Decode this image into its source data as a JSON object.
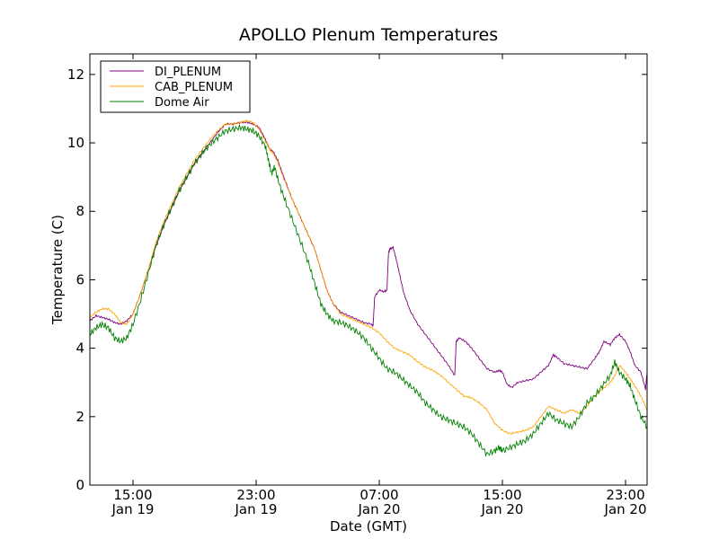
{
  "chart_data": {
    "type": "line",
    "title": "APOLLO Plenum Temperatures",
    "xlabel": "Date (GMT)",
    "ylabel": "Temperature (C)",
    "x_unit": "hours since Jan 19 00:00 GMT",
    "xlim": [
      12.2,
      48.4
    ],
    "ylim": [
      0,
      12.6
    ],
    "grid": false,
    "legend_position": "top-left",
    "x_ticks": [
      {
        "value": 15,
        "time": "15:00",
        "date": "Jan 19"
      },
      {
        "value": 23,
        "time": "23:00",
        "date": "Jan 19"
      },
      {
        "value": 31,
        "time": "07:00",
        "date": "Jan 20"
      },
      {
        "value": 39,
        "time": "15:00",
        "date": "Jan 20"
      },
      {
        "value": 47,
        "time": "23:00",
        "date": "Jan 20"
      }
    ],
    "y_ticks": [
      0,
      2,
      4,
      6,
      8,
      10,
      12
    ],
    "series": [
      {
        "name": "DI_PLENUM",
        "color": "#800080",
        "x": [
          12.2,
          12.6,
          13.0,
          13.4,
          13.8,
          14.2,
          14.6,
          15.0,
          15.5,
          16.0,
          16.5,
          17.0,
          17.5,
          18.0,
          18.5,
          19.0,
          19.5,
          20.0,
          20.5,
          21.0,
          21.5,
          22.0,
          22.4,
          22.8,
          23.2,
          23.6,
          23.9,
          24.1,
          24.4,
          24.8,
          25.3,
          25.8,
          26.3,
          26.8,
          27.2,
          27.6,
          28.0,
          28.5,
          29.0,
          29.5,
          30.0,
          30.5,
          30.6,
          30.7,
          31.0,
          31.3,
          31.5,
          31.6,
          31.7,
          31.9,
          32.1,
          32.3,
          32.6,
          33.0,
          33.5,
          34.0,
          34.5,
          35.0,
          35.5,
          35.9,
          36.0,
          36.2,
          36.6,
          37.0,
          37.5,
          38.0,
          38.5,
          38.8,
          39.0,
          39.3,
          39.6,
          40.0,
          40.5,
          41.0,
          41.5,
          42.0,
          42.3,
          42.5,
          43.0,
          43.5,
          44.0,
          44.5,
          45.0,
          45.3,
          45.6,
          46.0,
          46.3,
          46.6,
          47.0,
          47.3,
          47.6,
          48.0,
          48.3,
          48.4
        ],
        "y": [
          4.8,
          4.95,
          4.9,
          4.85,
          4.75,
          4.7,
          4.8,
          5.0,
          5.6,
          6.3,
          7.0,
          7.6,
          8.1,
          8.6,
          9.0,
          9.4,
          9.7,
          10.0,
          10.3,
          10.55,
          10.55,
          10.6,
          10.6,
          10.55,
          10.45,
          10.1,
          9.8,
          9.75,
          9.5,
          9.0,
          8.4,
          7.9,
          7.4,
          6.9,
          6.3,
          5.7,
          5.3,
          5.05,
          4.95,
          4.85,
          4.75,
          4.7,
          4.65,
          5.5,
          5.7,
          5.65,
          5.7,
          6.8,
          6.9,
          6.95,
          6.6,
          6.2,
          5.6,
          5.1,
          4.7,
          4.4,
          4.1,
          3.8,
          3.5,
          3.2,
          4.2,
          4.3,
          4.2,
          4.0,
          3.7,
          3.4,
          3.3,
          3.35,
          3.3,
          2.95,
          2.85,
          3.0,
          3.05,
          3.1,
          3.3,
          3.5,
          3.8,
          3.75,
          3.55,
          3.5,
          3.45,
          3.4,
          3.7,
          3.9,
          4.2,
          4.1,
          4.3,
          4.4,
          4.2,
          3.9,
          3.5,
          3.3,
          2.8,
          3.3
        ]
      },
      {
        "name": "CAB_PLENUM",
        "color": "#ffa500",
        "x": [
          12.2,
          12.6,
          13.0,
          13.4,
          13.8,
          14.2,
          14.6,
          15.0,
          15.5,
          16.0,
          16.5,
          17.0,
          17.5,
          18.0,
          18.5,
          19.0,
          19.5,
          20.0,
          20.5,
          21.0,
          21.5,
          22.0,
          22.4,
          22.8,
          23.2,
          23.6,
          23.9,
          24.1,
          24.4,
          24.8,
          25.3,
          25.8,
          26.3,
          26.8,
          27.2,
          27.6,
          28.0,
          28.5,
          29.0,
          29.5,
          30.0,
          30.5,
          31.0,
          31.5,
          32.0,
          32.5,
          33.0,
          33.5,
          34.0,
          34.5,
          35.0,
          35.5,
          36.0,
          36.5,
          37.0,
          37.5,
          38.0,
          38.5,
          39.0,
          39.5,
          40.0,
          40.5,
          41.0,
          41.5,
          42.0,
          42.5,
          43.0,
          43.5,
          44.0,
          44.5,
          45.0,
          45.5,
          46.0,
          46.3,
          46.6,
          47.0,
          47.3,
          47.6,
          48.0,
          48.4
        ],
        "y": [
          4.9,
          5.05,
          5.15,
          5.15,
          5.0,
          4.75,
          4.7,
          5.0,
          5.6,
          6.3,
          7.1,
          7.7,
          8.2,
          8.7,
          9.1,
          9.5,
          9.8,
          10.1,
          10.35,
          10.55,
          10.55,
          10.6,
          10.65,
          10.6,
          10.4,
          10.05,
          9.8,
          9.7,
          9.45,
          8.95,
          8.4,
          7.9,
          7.4,
          6.9,
          6.3,
          5.7,
          5.3,
          5.0,
          4.9,
          4.8,
          4.7,
          4.6,
          4.45,
          4.2,
          4.0,
          3.9,
          3.8,
          3.6,
          3.45,
          3.35,
          3.2,
          3.0,
          2.8,
          2.6,
          2.55,
          2.4,
          2.2,
          1.8,
          1.6,
          1.5,
          1.55,
          1.6,
          1.7,
          2.0,
          2.3,
          2.2,
          2.1,
          2.2,
          2.1,
          2.3,
          2.6,
          2.8,
          3.0,
          3.2,
          3.5,
          3.3,
          3.1,
          2.9,
          2.6,
          2.2
        ]
      },
      {
        "name": "Dome Air",
        "color": "#008000",
        "x": [
          12.2,
          12.6,
          13.0,
          13.4,
          13.8,
          14.2,
          14.6,
          15.0,
          15.5,
          16.0,
          16.5,
          17.0,
          17.5,
          18.0,
          18.5,
          19.0,
          19.5,
          20.0,
          20.5,
          21.0,
          21.5,
          22.0,
          22.4,
          22.8,
          23.2,
          23.6,
          23.8,
          24.0,
          24.2,
          24.5,
          24.9,
          25.4,
          25.9,
          26.4,
          26.8,
          27.2,
          27.6,
          28.0,
          28.5,
          29.0,
          29.5,
          30.0,
          30.5,
          31.0,
          31.5,
          32.0,
          32.5,
          33.0,
          33.5,
          34.0,
          34.5,
          35.0,
          35.5,
          36.0,
          36.5,
          37.0,
          37.5,
          38.0,
          38.5,
          38.8,
          39.0,
          39.5,
          40.0,
          40.5,
          41.0,
          41.5,
          42.0,
          42.5,
          43.0,
          43.5,
          44.0,
          44.5,
          45.0,
          45.5,
          46.0,
          46.3,
          46.6,
          47.0,
          47.3,
          47.6,
          48.0,
          48.4
        ],
        "y": [
          4.4,
          4.6,
          4.7,
          4.6,
          4.3,
          4.2,
          4.3,
          4.7,
          5.4,
          6.2,
          7.0,
          7.6,
          8.1,
          8.6,
          9.0,
          9.4,
          9.7,
          9.95,
          10.15,
          10.35,
          10.4,
          10.45,
          10.4,
          10.35,
          10.2,
          9.9,
          9.5,
          9.1,
          9.3,
          8.8,
          8.3,
          7.7,
          7.1,
          6.5,
          5.9,
          5.3,
          5.0,
          4.8,
          4.75,
          4.65,
          4.5,
          4.3,
          4.0,
          3.7,
          3.4,
          3.3,
          3.1,
          2.9,
          2.7,
          2.4,
          2.2,
          2.0,
          1.9,
          1.8,
          1.7,
          1.5,
          1.2,
          0.9,
          1.0,
          1.1,
          1.0,
          1.1,
          1.2,
          1.3,
          1.5,
          1.8,
          2.1,
          1.9,
          1.8,
          1.7,
          2.0,
          2.4,
          2.6,
          2.9,
          3.2,
          3.6,
          3.3,
          3.1,
          2.9,
          2.5,
          2.0,
          1.7
        ]
      }
    ]
  }
}
